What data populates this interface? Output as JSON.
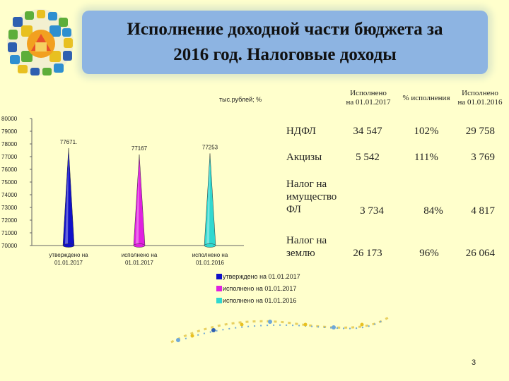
{
  "slide": {
    "title_line1": "Исполнение доходной части бюджета за",
    "title_line2": "2016 год. Налоговые доходы",
    "units": "тыс.рублей; %",
    "page_number": "3"
  },
  "chart_data": {
    "type": "bar",
    "shape": "cone",
    "categories": [
      "утверждено на 01.01.2017",
      "исполнено на 01.01.2017",
      "исполнено на 01.01.2016"
    ],
    "values": [
      77671,
      77167,
      77253
    ],
    "data_labels": [
      "77671.",
      "77167",
      "77253"
    ],
    "colors": [
      "#1010C8",
      "#E020E0",
      "#30D8D0"
    ],
    "ylim": [
      70000,
      80000
    ],
    "yticks": [
      70000,
      71000,
      72000,
      73000,
      74000,
      75000,
      76000,
      77000,
      78000,
      79000,
      80000
    ],
    "grid": false,
    "legend_position": "bottom",
    "legend": [
      "утверждено на 01.01.2017",
      "исполнено на 01.01.2017",
      "исполнено на 01.01.2016"
    ]
  },
  "table": {
    "headers": {
      "col1_line1": "Исполнено",
      "col1_line2": "на 01.01.2017",
      "col2": "% исполнения",
      "col3_line1": "Исполнено",
      "col3_line2": "на 01.01.2016"
    },
    "rows": [
      {
        "name_line1": "НДФЛ",
        "name_line2": "",
        "name_line3": "",
        "v2017": "34 547",
        "pct": "102%",
        "v2016": "29 758"
      },
      {
        "name_line1": "Акцизы",
        "name_line2": "",
        "name_line3": "",
        "v2017": "5 542",
        "pct": "111%",
        "v2016": "3 769"
      },
      {
        "name_line1": "Налог на",
        "name_line2": "имущество",
        "name_line3": "ФЛ",
        "v2017": "3 734",
        "pct": "84%",
        "v2016": "4 817"
      },
      {
        "name_line1": "Налог на",
        "name_line2": "землю",
        "name_line3": "",
        "v2017": "26 173",
        "pct": "96%",
        "v2016": "26 064"
      }
    ]
  }
}
